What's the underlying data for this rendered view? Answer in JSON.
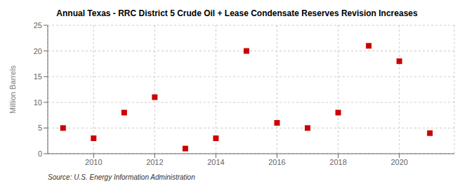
{
  "chart_data": {
    "type": "scatter",
    "title": "Annual Texas - RRC District 5 Crude Oil + Lease Condensate Reserves Revision Increases",
    "ylabel": "Million Barrels",
    "annotation": "Source: U.S. Energy Information Administration",
    "x": [
      2009,
      2010,
      2011,
      2012,
      2013,
      2014,
      2015,
      2016,
      2017,
      2018,
      2019,
      2020,
      2021
    ],
    "values": [
      5.0,
      3.0,
      8.0,
      11.0,
      1.0,
      3.0,
      20.0,
      6.0,
      5.0,
      8.0,
      21.0,
      18.0,
      4.0
    ],
    "color": "#cc0000",
    "marker": "square",
    "xlim": [
      2008.5,
      2021.8
    ],
    "ylim": [
      0,
      25
    ],
    "xticks": [
      2010,
      2012,
      2014,
      2016,
      2018,
      2020
    ],
    "yticks": [
      0,
      5,
      10,
      15,
      20,
      25
    ],
    "grid": true
  }
}
